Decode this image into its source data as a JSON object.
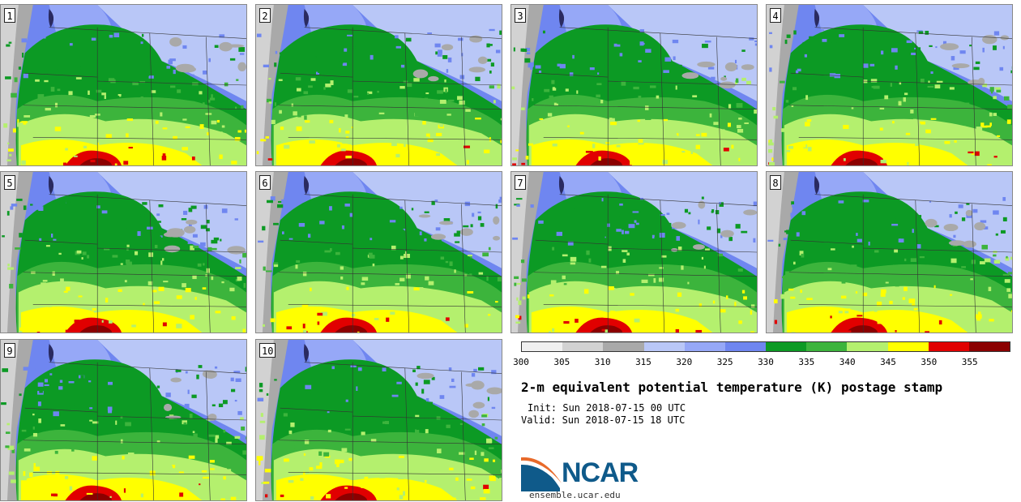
{
  "stamps": [
    {
      "label": "1"
    },
    {
      "label": "2"
    },
    {
      "label": "3"
    },
    {
      "label": "4"
    },
    {
      "label": "5"
    },
    {
      "label": "6"
    },
    {
      "label": "7"
    },
    {
      "label": "8"
    },
    {
      "label": "9"
    },
    {
      "label": "10"
    }
  ],
  "colorbar": {
    "tick_labels": [
      "300",
      "305",
      "310",
      "315",
      "320",
      "325",
      "330",
      "335",
      "340",
      "345",
      "350",
      "355"
    ],
    "colors": [
      "#f0f0f0",
      "#d2d2d2",
      "#a9a9a9",
      "#b9c7f7",
      "#96a8f7",
      "#6f86f0",
      "#0c9a24",
      "#3cb43c",
      "#b4f06e",
      "#ffff00",
      "#e10000",
      "#8b0000"
    ]
  },
  "title": "2-m equivalent potential temperature (K) postage stamp",
  "init": "Init: Sun 2018-07-15 00 UTC",
  "valid": "Valid: Sun 2018-07-15 18 UTC",
  "logo": {
    "text": "NCAR",
    "website": "ensemble.ucar.edu"
  }
}
